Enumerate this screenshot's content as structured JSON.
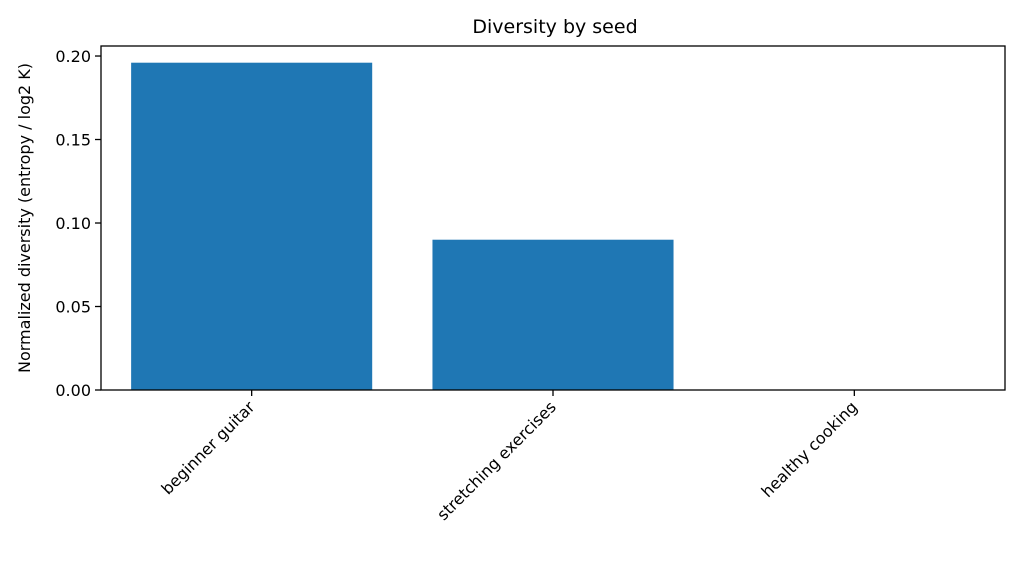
{
  "chart_data": {
    "type": "bar",
    "title": "Diversity by seed",
    "xlabel": "",
    "ylabel": "Normalized diversity (entropy / log2 K)",
    "categories": [
      "beginner guitar",
      "stretching exercises",
      "healthy cooking"
    ],
    "values": [
      0.196,
      0.09,
      0.0
    ],
    "ylim": [
      0,
      0.206
    ],
    "yticks": [
      "0.00",
      "0.05",
      "0.10",
      "0.15",
      "0.20"
    ],
    "bar_color": "#1f77b4",
    "grid": false,
    "legend": "none"
  }
}
